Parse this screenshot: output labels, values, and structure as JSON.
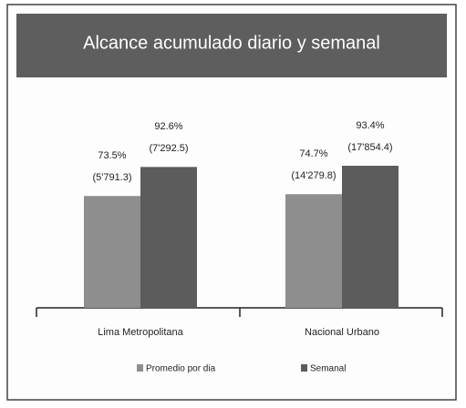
{
  "chart_data": {
    "type": "bar",
    "title": "Alcance acumulado diario y semanal",
    "categories": [
      "Lima Metropolitana",
      "Nacional Urbano"
    ],
    "series": [
      {
        "name": "Promedio por dia",
        "color": "#8e8e8e",
        "values": [
          73.5,
          74.7
        ],
        "value_labels": [
          "73.5%",
          "74.7%"
        ],
        "annotations": [
          "(5'791.3)",
          "(14'279.8)"
        ]
      },
      {
        "name": "Semanal",
        "color": "#5c5c5c",
        "values": [
          92.6,
          93.4
        ],
        "value_labels": [
          "92.6%",
          "93.4%"
        ],
        "annotations": [
          "(7'292.5)",
          "(17'854.4)"
        ]
      }
    ]
  }
}
